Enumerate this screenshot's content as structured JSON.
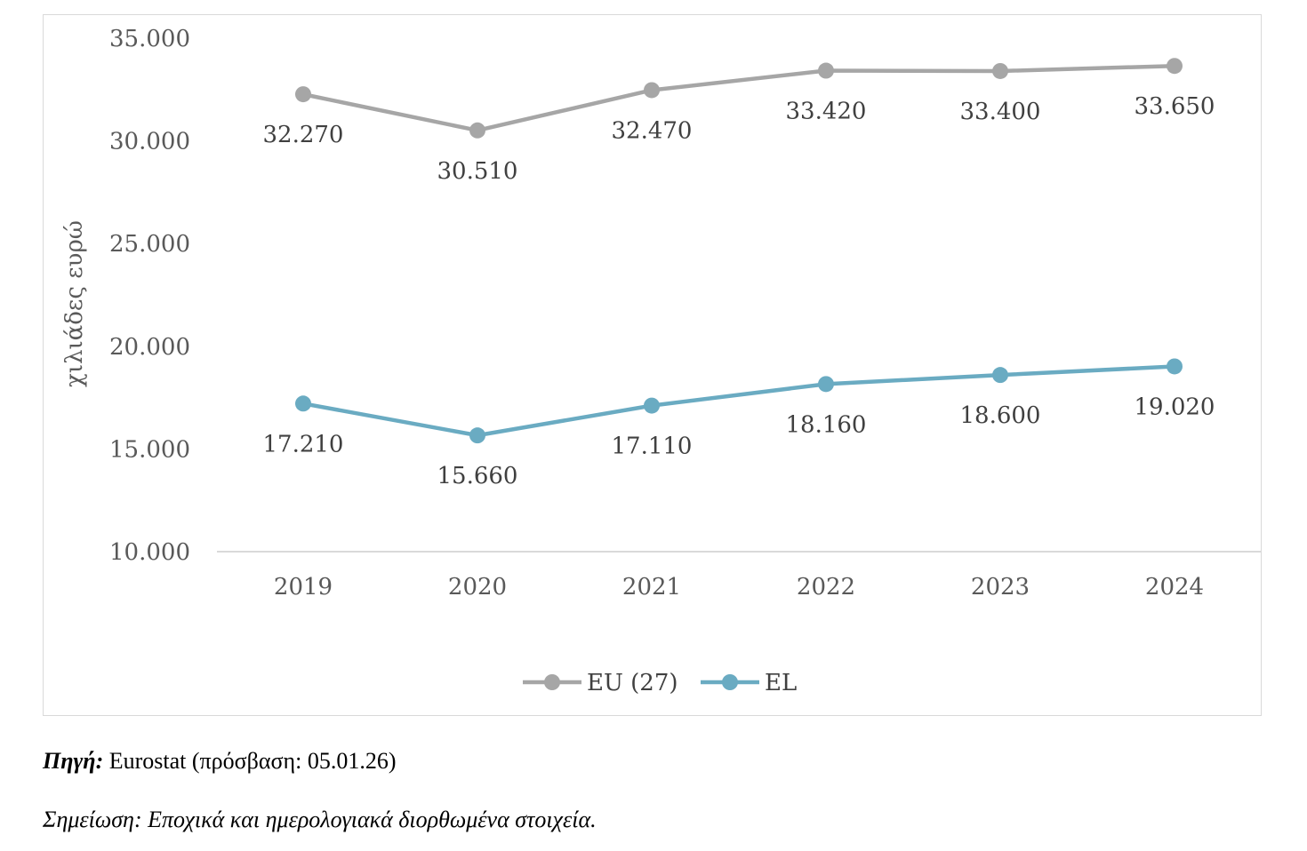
{
  "chart_data": {
    "type": "line",
    "categories": [
      "2019",
      "2020",
      "2021",
      "2022",
      "2023",
      "2024"
    ],
    "series": [
      {
        "name": "EU (27)",
        "color": "#a6a6a6",
        "values": [
          32270,
          30510,
          32470,
          33420,
          33400,
          33650
        ],
        "labels": [
          "32.270",
          "30.510",
          "32.470",
          "33.420",
          "33.400",
          "33.650"
        ]
      },
      {
        "name": "EL",
        "color": "#6aabc2",
        "values": [
          17210,
          15660,
          17110,
          18160,
          18600,
          19020
        ],
        "labels": [
          "17.210",
          "15.660",
          "17.110",
          "18.160",
          "18.600",
          "19.020"
        ]
      }
    ],
    "ylim": [
      10000,
      35000
    ],
    "yticks": [
      10000,
      15000,
      20000,
      25000,
      30000,
      35000
    ],
    "ytick_labels": [
      "10.000",
      "15.000",
      "20.000",
      "25.000",
      "30.000",
      "35.000"
    ],
    "ylabel": "χιλιάδες ευρώ",
    "xlabel": "",
    "legend_position": "bottom"
  },
  "footer": {
    "source_label": "Πηγή:",
    "source_text": "Eurostat (πρόσβαση: 05.01.26)",
    "note": "Σημείωση: Εποχικά και ημερολογιακά διορθωμένα στοιχεία."
  }
}
